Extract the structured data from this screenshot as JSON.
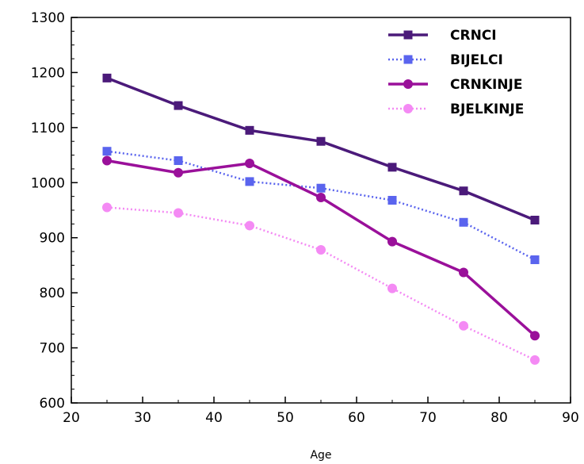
{
  "chart_data": {
    "type": "line",
    "title": "",
    "xlabel": "Age",
    "ylabel": "",
    "xlim": [
      20,
      90
    ],
    "ylim": [
      600,
      1300
    ],
    "x_ticks": [
      20,
      30,
      40,
      50,
      60,
      70,
      80,
      90
    ],
    "y_ticks": [
      600,
      700,
      800,
      900,
      1000,
      1100,
      1200,
      1300
    ],
    "grid": false,
    "legend_position": "top-right",
    "x": [
      25,
      35,
      45,
      55,
      65,
      75,
      85
    ],
    "series": [
      {
        "name": "CRNCI",
        "values": [
          1190,
          1140,
          1095,
          1075,
          1028,
          985,
          932
        ],
        "color": "#4b1a7a",
        "marker": "square",
        "line": "solid"
      },
      {
        "name": "BIJELCI",
        "values": [
          1057,
          1040,
          1002,
          990,
          968,
          928,
          860
        ],
        "color": "#5a64ee",
        "marker": "square",
        "line": "dotted"
      },
      {
        "name": "CRNKINJE",
        "values": [
          1040,
          1018,
          1035,
          973,
          893,
          837,
          722
        ],
        "color": "#9a109a",
        "marker": "circle",
        "line": "solid"
      },
      {
        "name": "BJELKINJE",
        "values": [
          955,
          945,
          922,
          878,
          808,
          740,
          678
        ],
        "color": "#f48af4",
        "marker": "circle",
        "line": "dotted"
      }
    ]
  }
}
